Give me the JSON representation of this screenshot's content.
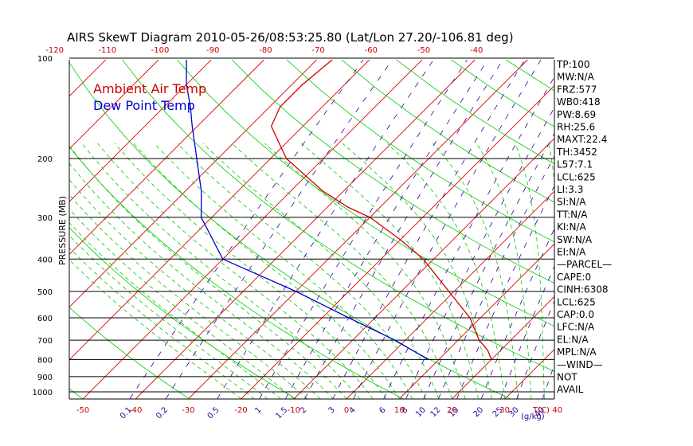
{
  "title": "AIRS SkewT Diagram 2010-05-26/08:53:25.80 (Lat/Lon 27.20/-106.81 deg)",
  "colors": {
    "isotherm": "#dd0000",
    "dry_adiabat": "#00cc00",
    "moist_adiabat": "#00cc00",
    "mixing_ratio": "#330099",
    "temperature": "#cc0000",
    "dewpoint": "#0000cc",
    "isobar": "#000000"
  },
  "chart_data": {
    "type": "line",
    "diagram": "skew-t log-p",
    "title": "AIRS SkewT Diagram 2010-05-26/08:53:25.80 (Lat/Lon 27.20/-106.81 deg)",
    "ylabel": "PRESSURE (MB)",
    "y_scale": "log",
    "ylim": [
      1050,
      100
    ],
    "y_ticks": [
      1000,
      900,
      800,
      700,
      600,
      500,
      400,
      300,
      200,
      100
    ],
    "y_tick_labels": [
      "1000",
      "900",
      "800",
      "700",
      "600",
      "500",
      "400",
      "300",
      "200",
      "100"
    ],
    "x_bottom_ticks": [
      -50,
      -40,
      -30,
      -20,
      -10,
      0,
      10,
      20,
      30,
      40
    ],
    "x_bottom_tick_labels": [
      "-50",
      "-40",
      "-30",
      "-20",
      "-10",
      "0",
      "10",
      "20",
      "30",
      "40"
    ],
    "x_bottom_unit": "T(C)",
    "x_top_ticks": [
      -120,
      -110,
      -100,
      -90,
      -80,
      -70,
      -60,
      -50,
      -40
    ],
    "x_top_tick_labels": [
      "-120",
      "-110",
      "-100",
      "-90",
      "-80",
      "-70",
      "-60",
      "-50",
      "-40"
    ],
    "mixing_ratio_lines": [
      0.1,
      0.2,
      0.5,
      1,
      1.5,
      2,
      3,
      4,
      6,
      8,
      10,
      12,
      15,
      20,
      25,
      30,
      40
    ],
    "mixing_ratio_labels": [
      "0.1",
      "0.2",
      "0.5",
      "1",
      "1.5",
      "2",
      "3",
      "4",
      "6",
      "8",
      "10",
      "12",
      "15",
      "20",
      "25",
      "30",
      "40"
    ],
    "mixing_ratio_unit": "(g/kg)",
    "grid": true,
    "legend": "top-left",
    "series": [
      {
        "name": "Ambient Air Temp",
        "color": "#cc0000",
        "points": [
          {
            "p": 800,
            "t": 20
          },
          {
            "p": 750,
            "t": 17.5
          },
          {
            "p": 700,
            "t": 14
          },
          {
            "p": 600,
            "t": 8
          },
          {
            "p": 500,
            "t": -1
          },
          {
            "p": 400,
            "t": -12
          },
          {
            "p": 350,
            "t": -20
          },
          {
            "p": 300,
            "t": -30
          },
          {
            "p": 280,
            "t": -36
          },
          {
            "p": 250,
            "t": -44
          },
          {
            "p": 200,
            "t": -57
          },
          {
            "p": 160,
            "t": -66
          },
          {
            "p": 140,
            "t": -68
          },
          {
            "p": 120,
            "t": -68
          },
          {
            "p": 100,
            "t": -67
          }
        ]
      },
      {
        "name": "Dew Point Temp",
        "color": "#0000cc",
        "points": [
          {
            "p": 800,
            "t": 8
          },
          {
            "p": 700,
            "t": -2
          },
          {
            "p": 600,
            "t": -15
          },
          {
            "p": 500,
            "t": -30
          },
          {
            "p": 400,
            "t": -50
          },
          {
            "p": 300,
            "t": -62
          },
          {
            "p": 250,
            "t": -67
          },
          {
            "p": 200,
            "t": -74
          },
          {
            "p": 160,
            "t": -81
          },
          {
            "p": 140,
            "t": -85
          },
          {
            "p": 120,
            "t": -90
          },
          {
            "p": 100,
            "t": -95
          }
        ]
      }
    ]
  },
  "indices": [
    "TP:100",
    "MW:N/A",
    "FRZ:577",
    "WB0:418",
    "PW:8.69",
    "RH:25.6",
    "MAXT:22.4",
    "TH:3452",
    "L57:7.1",
    "LCL:625",
    "LI:3.3",
    "SI:N/A",
    "TT:N/A",
    "KI:N/A",
    "SW:N/A",
    "EI:N/A",
    "—PARCEL—",
    "CAPE:0",
    "CINH:6308",
    "LCL:625",
    "CAP:0.0",
    "LFC:N/A",
    "EL:N/A",
    "MPL:N/A",
    "—WIND—",
    "NOT",
    "AVAIL"
  ]
}
